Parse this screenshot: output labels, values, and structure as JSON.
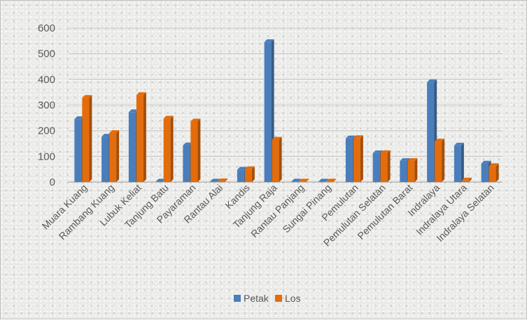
{
  "chart_data": {
    "type": "bar",
    "categories": [
      "Muara Kuang",
      "Rambang Kuang",
      "Lubuk Keliat",
      "Tanjung Batu",
      "Payaraman",
      "Rantau Alai",
      "Kandis",
      "Tanjung Raja",
      "Rantau Panjang",
      "Sungai Pinang",
      "Pemulutan",
      "Pemulutan Selatan",
      "Pemulutan Barat",
      "Indralaya",
      "Indralaya Utara",
      "Indralaya Selatan"
    ],
    "series": [
      {
        "name": "Petak",
        "color": "#4a7ebb",
        "values": [
          245,
          177,
          272,
          2,
          143,
          2,
          48,
          545,
          2,
          2,
          170,
          112,
          82,
          389,
          142,
          72
        ]
      },
      {
        "name": "Los",
        "color": "#e46c0a",
        "values": [
          328,
          191,
          339,
          247,
          236,
          3,
          50,
          165,
          2,
          2,
          171,
          113,
          82,
          158,
          6,
          62
        ]
      }
    ],
    "yticks": [
      "0",
      "100",
      "200",
      "300",
      "400",
      "500",
      "600"
    ],
    "ylim": [
      0,
      600
    ],
    "grid": true,
    "legend": "bottom"
  }
}
